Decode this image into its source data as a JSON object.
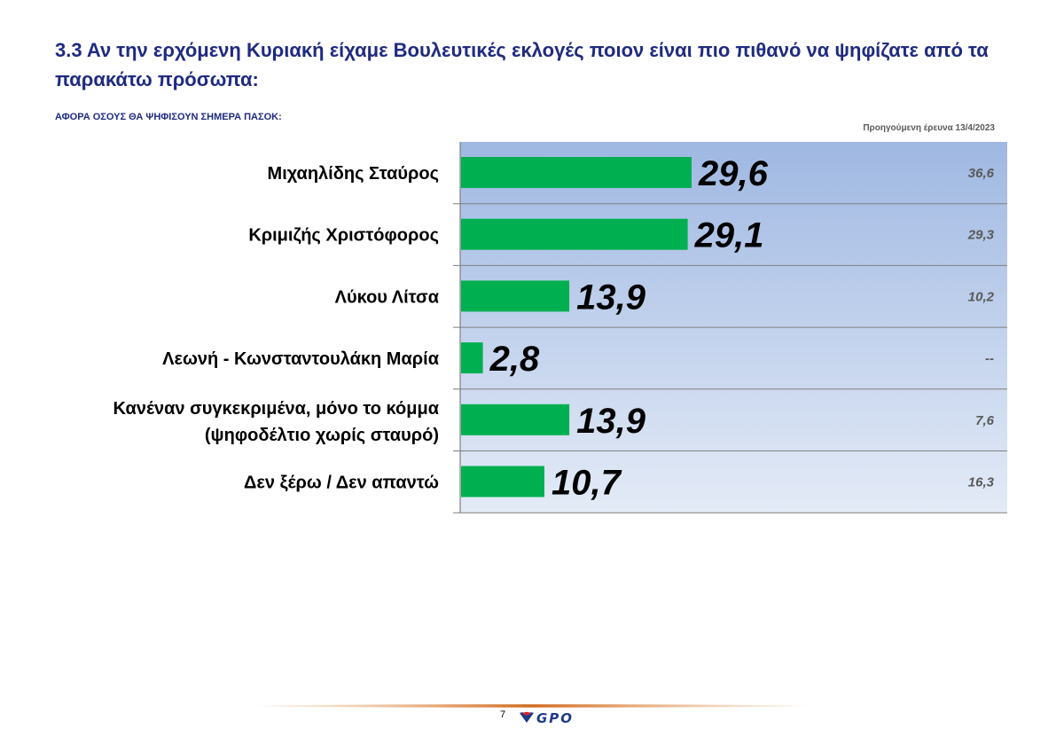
{
  "page": {
    "title": "3.3 Αν την ερχόμενη Κυριακή είχαμε Βουλευτικές εκλογές ποιον είναι πιο πιθανό να ψηφίζατε από τα παρακάτω πρόσωπα:",
    "subtitle": "ΑΦΟΡΑ ΟΣΟΥΣ ΘΑ ΨΗΦΙΣΟΥΝ ΣΗΜΕΡΑ ΠΑΣΟΚ:",
    "prev_header": "Προηγούμενη έρευνα 13/4/2023",
    "page_number": "7",
    "logo_text": "GPO"
  },
  "chart_data": {
    "type": "bar",
    "orientation": "horizontal",
    "categories": [
      [
        "Μιχαηλίδης Σταύρος"
      ],
      [
        "Κριμιζής Χριστόφορος"
      ],
      [
        "Λύκου Λίτσα"
      ],
      [
        "Λεωνή - Κωνσταντουλάκη Μαρία"
      ],
      [
        "Κανέναν συγκεκριμένα, μόνο το κόμμα",
        "(ψηφοδέλτιο χωρίς σταυρό)"
      ],
      [
        "Δεν ξέρω / Δεν απαντώ"
      ]
    ],
    "series": [
      {
        "values": [
          29.6,
          29.1,
          13.9,
          2.8,
          13.9,
          10.7
        ],
        "labels": [
          "29,6",
          "29,1",
          "13,9",
          "2,8",
          "13,9",
          "10,7"
        ]
      }
    ],
    "previous": [
      "36,6",
      "29,3",
      "10,2",
      "--",
      "7,6",
      "16,3"
    ],
    "bar_color": "#00b050",
    "background_gradient": [
      "#9fb8e2",
      "#e4ebf7"
    ]
  }
}
